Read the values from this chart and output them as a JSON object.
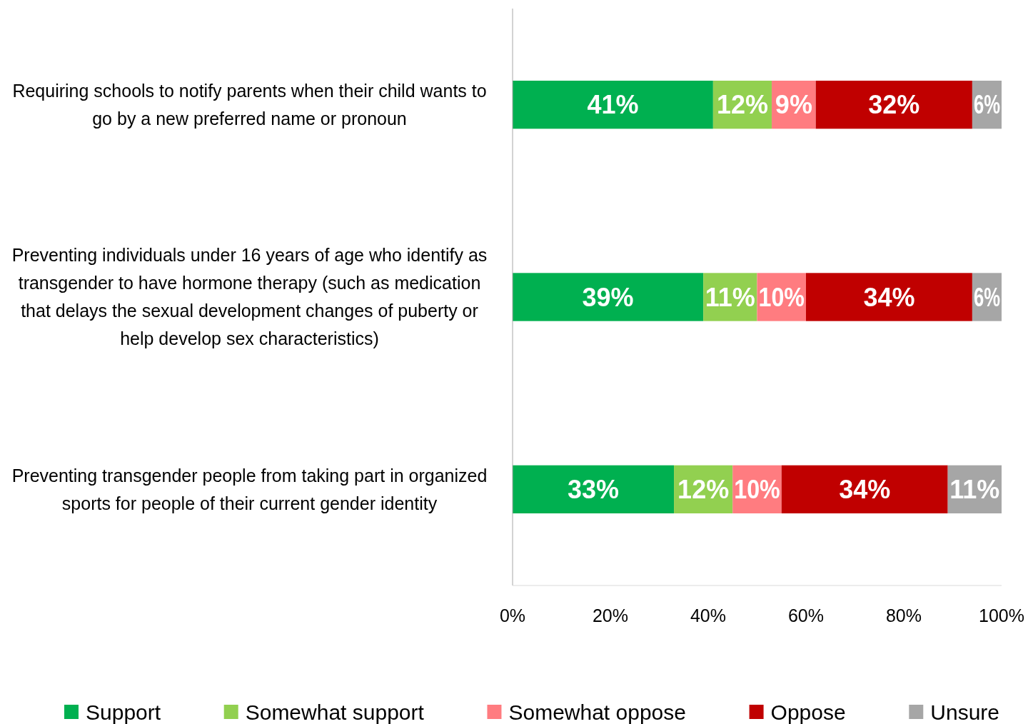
{
  "chart_data": {
    "type": "bar",
    "orientation": "horizontal",
    "stacked": true,
    "legend": "bottom",
    "grid": false,
    "categories": [
      "Requiring schools to notify parents when their child wants to go by a new preferred name or pronoun",
      "Preventing individuals under 16 years of age who identify as transgender to have hormone therapy (such as medication that delays the sexual development changes of puberty or help develop sex characteristics)",
      "Preventing transgender people from taking part in organized sports for people of their current gender identity"
    ],
    "series": [
      {
        "name": "Support",
        "color": "#00b050",
        "values": [
          41,
          39,
          33
        ],
        "value_labels": [
          "41%",
          "39%",
          "33%"
        ]
      },
      {
        "name": "Somewhat support",
        "color": "#92d050",
        "values": [
          12,
          11,
          12
        ],
        "value_labels": [
          "12%",
          "11%",
          "12%"
        ]
      },
      {
        "name": "Somewhat oppose",
        "color": "#ff7c80",
        "values": [
          9,
          10,
          10
        ],
        "value_labels": [
          "9%",
          "10%",
          "10%"
        ]
      },
      {
        "name": "Oppose",
        "color": "#c00000",
        "values": [
          32,
          34,
          34
        ],
        "value_labels": [
          "32%",
          "34%",
          "34%"
        ]
      },
      {
        "name": "Unsure",
        "color": "#a6a6a6",
        "values": [
          6,
          6,
          11
        ],
        "value_labels": [
          "6%",
          "6%",
          "11%"
        ]
      }
    ],
    "xlim": [
      0,
      100
    ],
    "xticks": [
      {
        "value": 0,
        "label": "0%"
      },
      {
        "value": 20,
        "label": "20%"
      },
      {
        "value": 40,
        "label": "40%"
      },
      {
        "value": 60,
        "label": "60%"
      },
      {
        "value": 80,
        "label": "80%"
      },
      {
        "value": 100,
        "label": "100%"
      }
    ]
  }
}
